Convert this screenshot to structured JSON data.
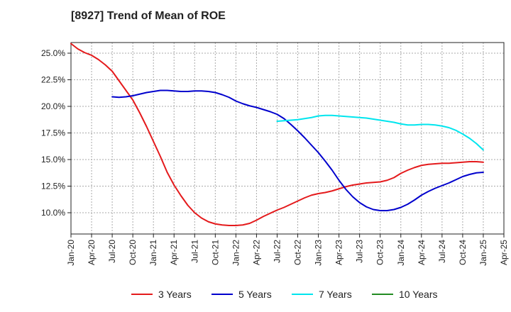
{
  "chart_data": {
    "type": "line",
    "title": "[8927]  Trend of Mean of ROE",
    "xlabel": "",
    "ylabel": "",
    "x_tick_labels": [
      "Jan-20",
      "Apr-20",
      "Jul-20",
      "Oct-20",
      "Jan-21",
      "Apr-21",
      "Jul-21",
      "Oct-21",
      "Jan-22",
      "Apr-22",
      "Jul-22",
      "Oct-22",
      "Jan-23",
      "Apr-23",
      "Jul-23",
      "Oct-23",
      "Jan-24",
      "Apr-24",
      "Jul-24",
      "Oct-24",
      "Jan-25",
      "Apr-25"
    ],
    "y_tick_labels": [
      "10.0%",
      "12.5%",
      "15.0%",
      "17.5%",
      "20.0%",
      "22.5%",
      "25.0%"
    ],
    "y_ticks": [
      10.0,
      12.5,
      15.0,
      17.5,
      20.0,
      22.5,
      25.0
    ],
    "ylim": [
      8.0,
      26.0
    ],
    "grid": true,
    "legend_position": "bottom",
    "series": [
      {
        "name": "3 Years",
        "color": "#e41a1c",
        "x": [
          "Jan-20",
          "Feb-20",
          "Mar-20",
          "Apr-20",
          "May-20",
          "Jun-20",
          "Jul-20",
          "Aug-20",
          "Sep-20",
          "Oct-20",
          "Nov-20",
          "Dec-20",
          "Jan-21",
          "Feb-21",
          "Mar-21",
          "Apr-21",
          "May-21",
          "Jun-21",
          "Jul-21",
          "Aug-21",
          "Sep-21",
          "Oct-21",
          "Nov-21",
          "Dec-21",
          "Jan-22",
          "Feb-22",
          "Mar-22",
          "Apr-22",
          "May-22",
          "Jun-22",
          "Jul-22",
          "Aug-22",
          "Sep-22",
          "Oct-22",
          "Nov-22",
          "Dec-22",
          "Jan-23",
          "Feb-23",
          "Mar-23",
          "Apr-23",
          "May-23",
          "Jun-23",
          "Jul-23",
          "Aug-23",
          "Sep-23",
          "Oct-23",
          "Nov-23",
          "Dec-23",
          "Jan-24",
          "Feb-24",
          "Mar-24",
          "Apr-24",
          "May-24",
          "Jun-24",
          "Jul-24",
          "Aug-24",
          "Sep-24",
          "Oct-24",
          "Nov-24",
          "Dec-24",
          "Jan-25"
        ],
        "values": [
          25.9,
          25.4,
          25.05,
          24.8,
          24.4,
          23.9,
          23.3,
          22.4,
          21.5,
          20.6,
          19.4,
          18.1,
          16.7,
          15.3,
          13.8,
          12.6,
          11.6,
          10.7,
          10.0,
          9.5,
          9.15,
          8.95,
          8.85,
          8.8,
          8.8,
          8.85,
          9.0,
          9.3,
          9.65,
          9.95,
          10.25,
          10.5,
          10.8,
          11.1,
          11.4,
          11.65,
          11.8,
          11.9,
          12.05,
          12.25,
          12.45,
          12.6,
          12.7,
          12.8,
          12.85,
          12.9,
          13.05,
          13.3,
          13.7,
          14.0,
          14.25,
          14.45,
          14.55,
          14.6,
          14.65,
          14.65,
          14.7,
          14.75,
          14.8,
          14.8,
          14.75
        ]
      },
      {
        "name": "5 Years",
        "color": "#0000cd",
        "x": [
          "Jul-20",
          "Aug-20",
          "Sep-20",
          "Oct-20",
          "Nov-20",
          "Dec-20",
          "Jan-21",
          "Feb-21",
          "Mar-21",
          "Apr-21",
          "May-21",
          "Jun-21",
          "Jul-21",
          "Aug-21",
          "Sep-21",
          "Oct-21",
          "Nov-21",
          "Dec-21",
          "Jan-22",
          "Feb-22",
          "Mar-22",
          "Apr-22",
          "May-22",
          "Jun-22",
          "Jul-22",
          "Aug-22",
          "Sep-22",
          "Oct-22",
          "Nov-22",
          "Dec-22",
          "Jan-23",
          "Feb-23",
          "Mar-23",
          "Apr-23",
          "May-23",
          "Jun-23",
          "Jul-23",
          "Aug-23",
          "Sep-23",
          "Oct-23",
          "Nov-23",
          "Dec-23",
          "Jan-24",
          "Feb-24",
          "Mar-24",
          "Apr-24",
          "May-24",
          "Jun-24",
          "Jul-24",
          "Aug-24",
          "Sep-24",
          "Oct-24",
          "Nov-24",
          "Dec-24",
          "Jan-25"
        ],
        "values": [
          20.9,
          20.85,
          20.9,
          21.0,
          21.15,
          21.3,
          21.4,
          21.5,
          21.5,
          21.45,
          21.4,
          21.4,
          21.45,
          21.45,
          21.4,
          21.3,
          21.1,
          20.85,
          20.5,
          20.25,
          20.05,
          19.9,
          19.7,
          19.5,
          19.25,
          18.85,
          18.3,
          17.7,
          17.05,
          16.35,
          15.65,
          14.85,
          14.0,
          13.05,
          12.2,
          11.5,
          10.95,
          10.55,
          10.3,
          10.2,
          10.2,
          10.3,
          10.5,
          10.8,
          11.2,
          11.65,
          12.0,
          12.3,
          12.55,
          12.8,
          13.1,
          13.4,
          13.6,
          13.75,
          13.8
        ]
      },
      {
        "name": "7 Years",
        "color": "#00e5ee",
        "x": [
          "Jul-22",
          "Aug-22",
          "Sep-22",
          "Oct-22",
          "Nov-22",
          "Dec-22",
          "Jan-23",
          "Feb-23",
          "Mar-23",
          "Apr-23",
          "May-23",
          "Jun-23",
          "Jul-23",
          "Aug-23",
          "Sep-23",
          "Oct-23",
          "Nov-23",
          "Dec-23",
          "Jan-24",
          "Feb-24",
          "Mar-24",
          "Apr-24",
          "May-24",
          "Jun-24",
          "Jul-24",
          "Aug-24",
          "Sep-24",
          "Oct-24",
          "Nov-24",
          "Dec-24",
          "Jan-25"
        ],
        "values": [
          18.6,
          18.65,
          18.7,
          18.75,
          18.85,
          18.95,
          19.1,
          19.15,
          19.15,
          19.1,
          19.05,
          19.0,
          18.95,
          18.9,
          18.8,
          18.7,
          18.6,
          18.5,
          18.35,
          18.25,
          18.25,
          18.3,
          18.3,
          18.25,
          18.15,
          18.0,
          17.75,
          17.4,
          17.0,
          16.5,
          15.9
        ]
      },
      {
        "name": "10 Years",
        "color": "#228b22",
        "x": [],
        "values": []
      }
    ]
  }
}
